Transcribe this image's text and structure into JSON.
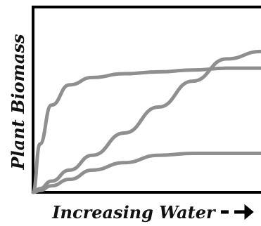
{
  "chart_data": {
    "type": "line",
    "title": "",
    "xlabel": "Increasing Water",
    "ylabel": "Plant Biomass",
    "xlim": [
      0,
      10
    ],
    "ylim": [
      0,
      10
    ],
    "grid": false,
    "legend": "none",
    "x": [
      0,
      0.3,
      0.8,
      1.6,
      2.6,
      4.0,
      5.5,
      7.0,
      8.5,
      10
    ],
    "series": [
      {
        "values": [
          0,
          2.6,
          4.7,
          5.8,
          6.2,
          6.4,
          6.5,
          6.6,
          6.7,
          6.7
        ],
        "color": "#8f8f8f"
      },
      {
        "values": [
          0,
          0.2,
          0.6,
          1.2,
          2.0,
          3.2,
          4.6,
          6.0,
          7.2,
          7.6
        ],
        "color": "#8f8f8f"
      },
      {
        "values": [
          0,
          0.1,
          0.35,
          0.7,
          1.2,
          1.6,
          2.0,
          2.1,
          2.1,
          2.1
        ],
        "color": "#8f8f8f"
      }
    ],
    "axis_color": "#000000",
    "arrow_icon": "arrow-right"
  }
}
